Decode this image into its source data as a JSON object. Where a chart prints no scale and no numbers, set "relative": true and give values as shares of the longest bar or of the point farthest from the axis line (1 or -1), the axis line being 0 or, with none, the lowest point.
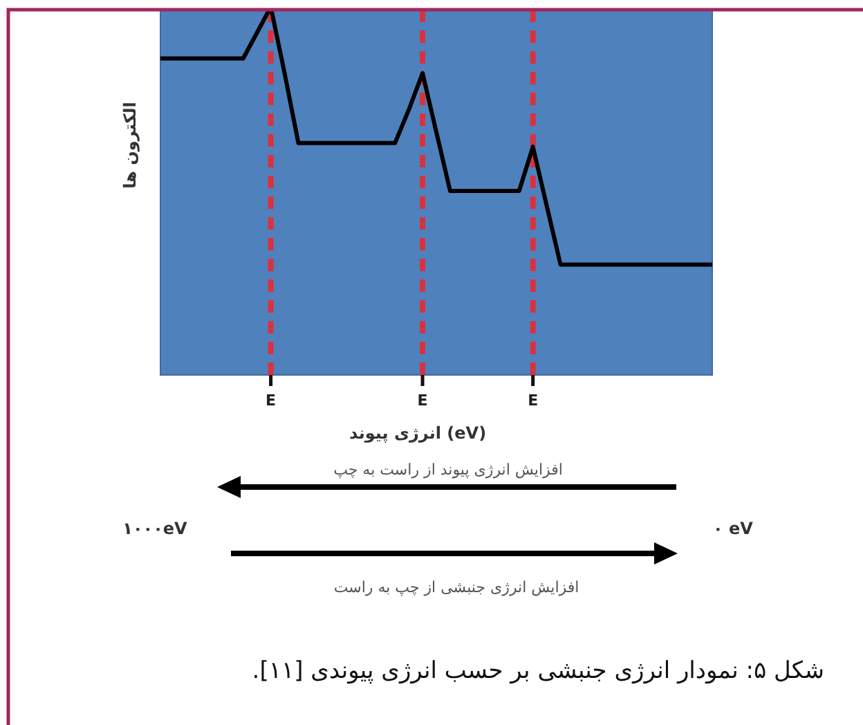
{
  "chart_data": {
    "type": "line",
    "relative": true,
    "ylabel": "الکترون ها",
    "xlabel": "انرژی پیوند (eV)",
    "title": "شکل ۵: نمودار انرژی جنبشی بر حسب انرژی پیوندی [۱۱].",
    "categories": [
      null,
      null,
      null,
      null,
      null,
      null,
      null,
      null,
      "E",
      null,
      null,
      null,
      null,
      null,
      null,
      null,
      null,
      null,
      null,
      "E",
      null,
      null,
      null,
      null,
      null,
      null,
      null,
      "E",
      null,
      null,
      null,
      null,
      null,
      null,
      null,
      null,
      null,
      null,
      null,
      null,
      null
    ],
    "series": [
      {
        "color": "#000000",
        "values": [
          0.86,
          0.86,
          0.86,
          0.86,
          0.86,
          0.86,
          0.86,
          0.93,
          1,
          0.82,
          0.63,
          0.63,
          0.63,
          0.63,
          0.63,
          0.63,
          0.63,
          0.63,
          0.72,
          0.82,
          0.66,
          0.5,
          0.5,
          0.5,
          0.5,
          0.5,
          0.5,
          0.62,
          0.46,
          0.3,
          0.3,
          0.3,
          0.3,
          0.3,
          0.3,
          0.3,
          0.3,
          0.3,
          0.3,
          0.3,
          0.3
        ]
      }
    ],
    "grid": "x",
    "annotations": [
      "افزایش انرژی پیوند از راست به چپ",
      "۱۰۰۰eV",
      "۰ eV",
      "افزایش انرژی جنبشی از چپ به راست"
    ],
    "marker": "none",
    "line_style": "solid"
  }
}
